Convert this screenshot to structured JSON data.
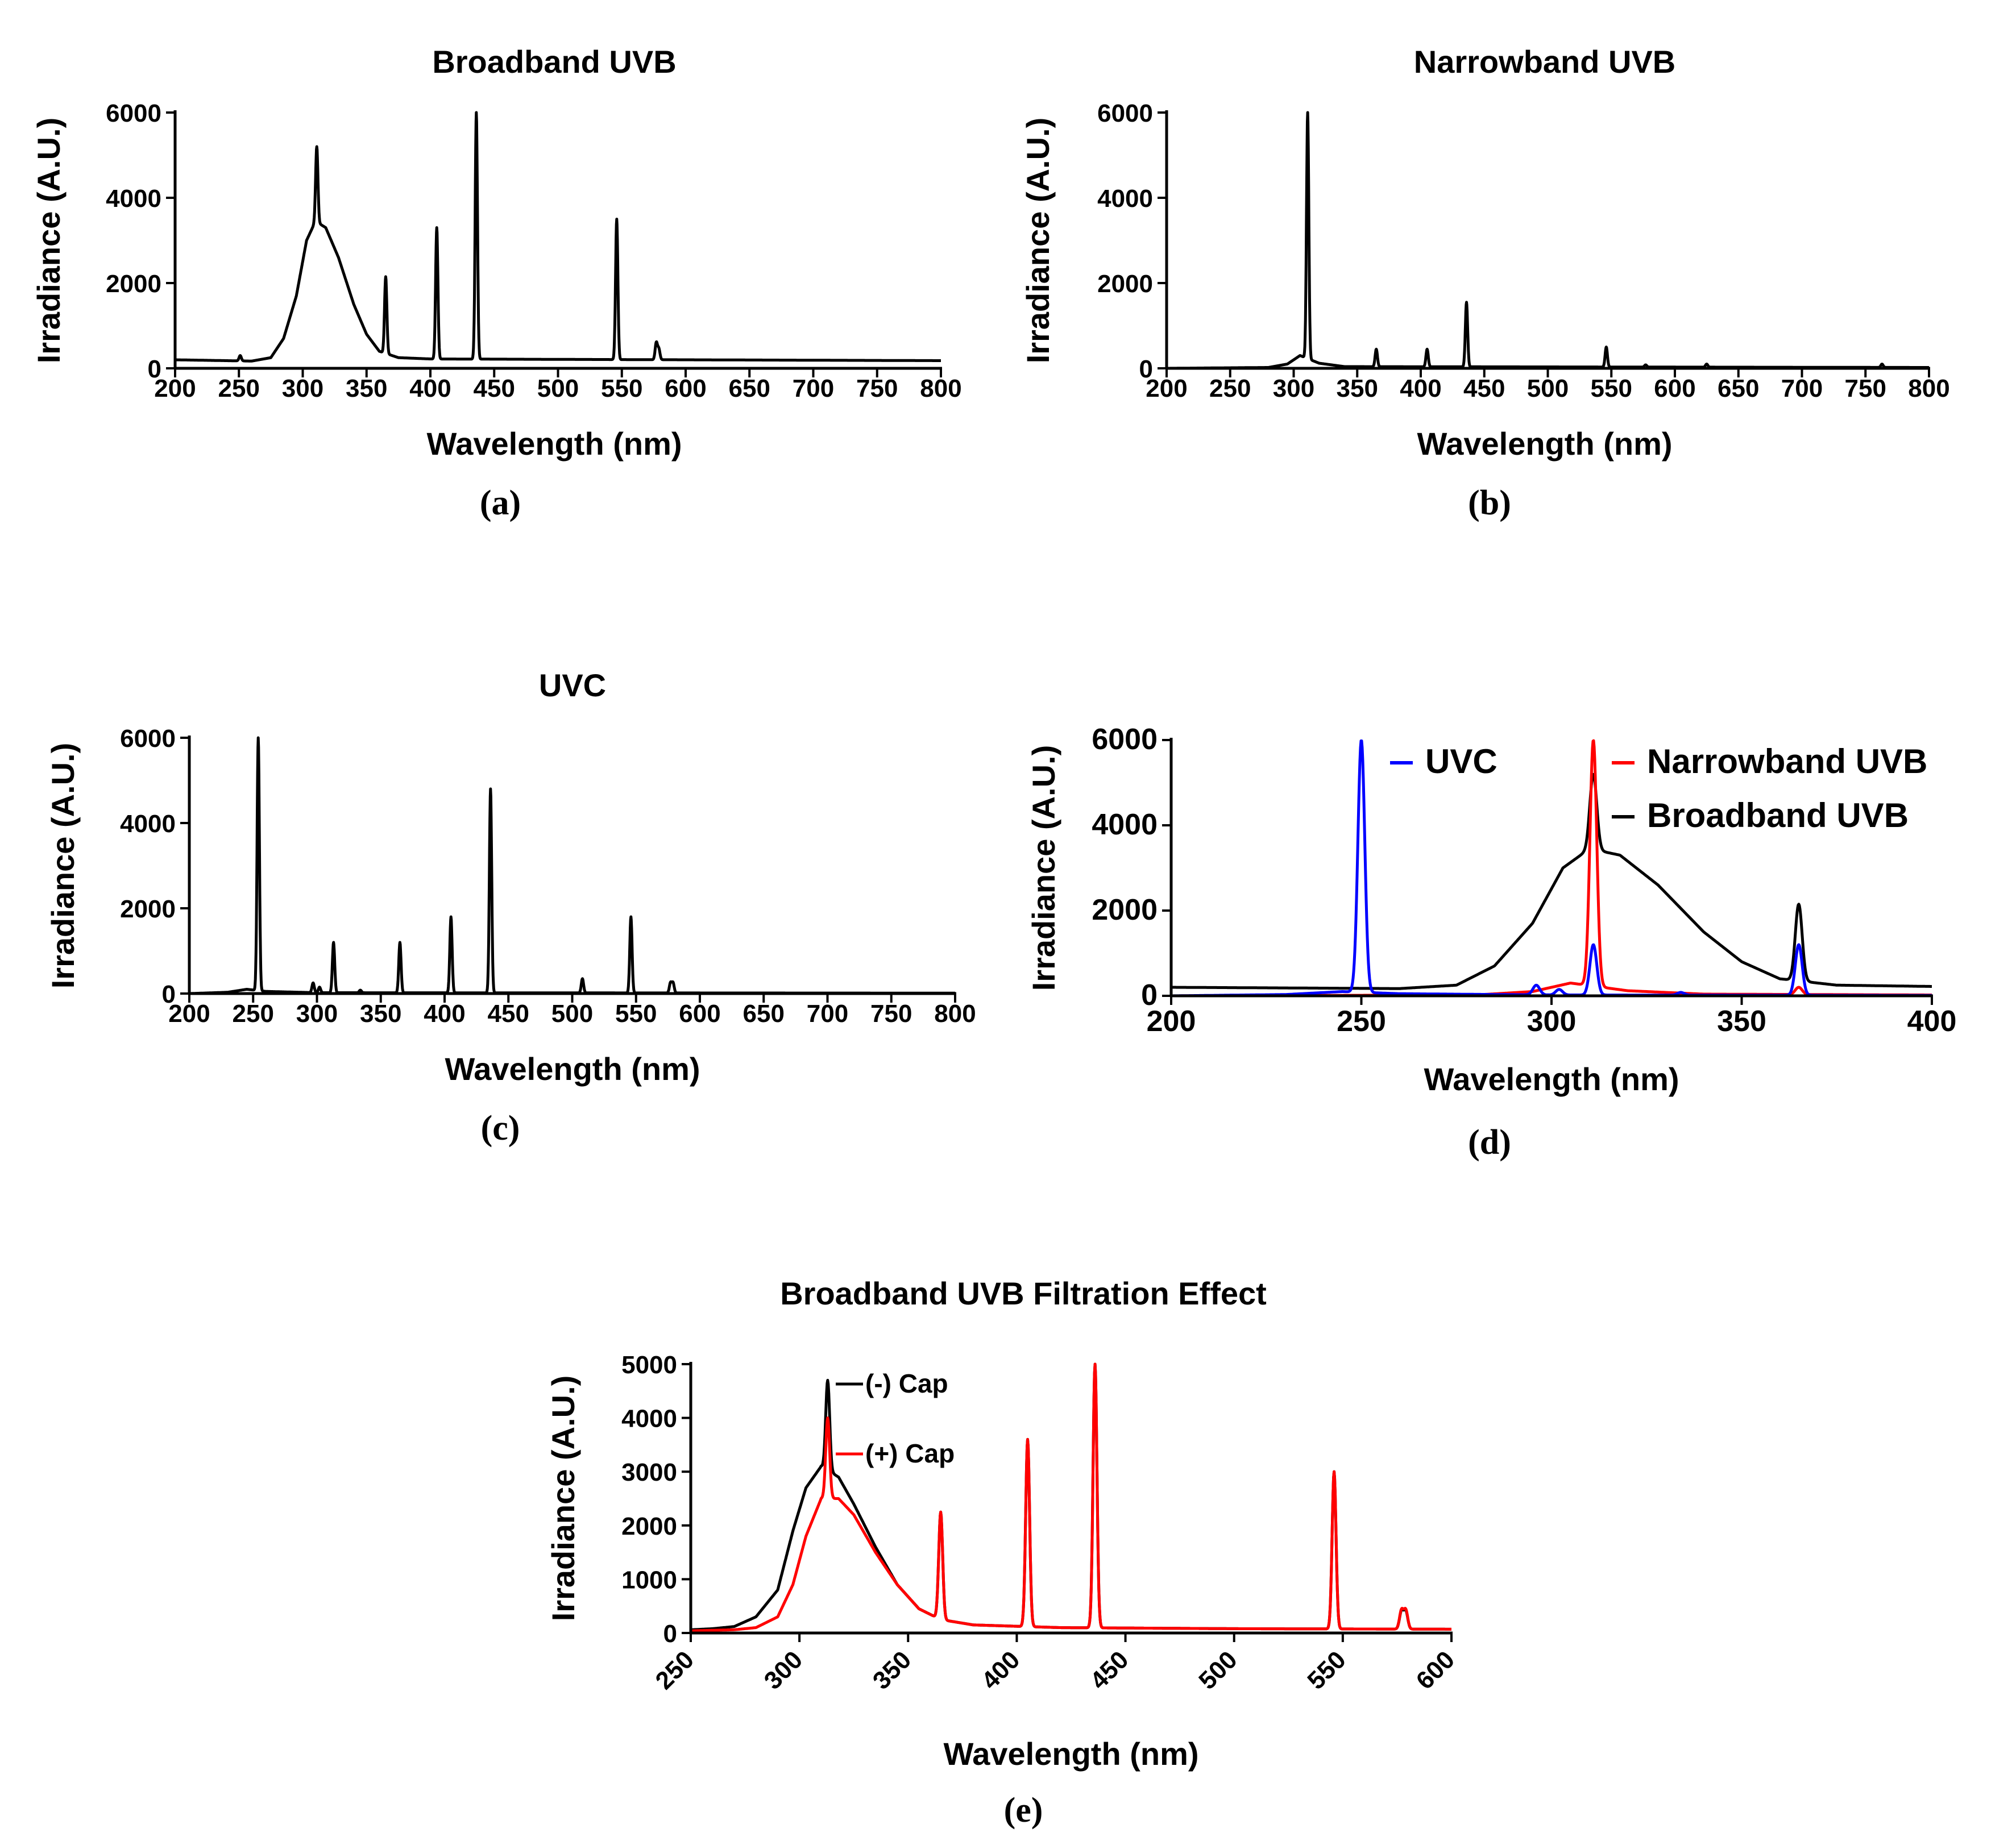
{
  "figure": {
    "colors": {
      "black": "#000000",
      "red": "#ff0000",
      "blue": "#0000ff"
    },
    "panels": {
      "a": {
        "caption": "(a)"
      },
      "b": {
        "caption": "(b)"
      },
      "c": {
        "caption": "(c)"
      },
      "d": {
        "caption": "(d)"
      },
      "e": {
        "caption": "(e)"
      }
    }
  },
  "chart_data": [
    {
      "id": "a",
      "type": "line",
      "title": "Broadband UVB",
      "xlabel": "Wavelength (nm)",
      "ylabel": "Irradiance (A.U.)",
      "xlim": [
        200,
        800
      ],
      "ylim": [
        0,
        6000
      ],
      "xticks": [
        200,
        250,
        300,
        350,
        400,
        450,
        500,
        550,
        600,
        650,
        700,
        750,
        800
      ],
      "yticks": [
        0,
        2000,
        4000,
        6000
      ],
      "series": [
        {
          "name": "Broadband UVB",
          "color": "#000000",
          "background": [
            [
              200,
              200
            ],
            [
              240,
              180
            ],
            [
              260,
              170
            ],
            [
              275,
              250
            ],
            [
              285,
              700
            ],
            [
              295,
              1700
            ],
            [
              303,
              3000
            ],
            [
              310,
              3450
            ],
            [
              318,
              3300
            ],
            [
              328,
              2600
            ],
            [
              340,
              1500
            ],
            [
              350,
              800
            ],
            [
              360,
              400
            ],
            [
              375,
              250
            ],
            [
              400,
              220
            ],
            [
              500,
              210
            ],
            [
              600,
              200
            ],
            [
              700,
              190
            ],
            [
              800,
              180
            ]
          ],
          "peaks": [
            [
              251,
              300
            ],
            [
              311,
              5200
            ],
            [
              365,
              2150
            ],
            [
              405,
              3300
            ],
            [
              436,
              6000
            ],
            [
              546,
              3500
            ],
            [
              577,
              600
            ],
            [
              579,
              450
            ]
          ]
        }
      ]
    },
    {
      "id": "b",
      "type": "line",
      "title": "Narrowband UVB",
      "xlabel": "Wavelength (nm)",
      "ylabel": "Irradiance (A.U.)",
      "xlim": [
        200,
        800
      ],
      "ylim": [
        0,
        6000
      ],
      "xticks": [
        200,
        250,
        300,
        350,
        400,
        450,
        500,
        550,
        600,
        650,
        700,
        750,
        800
      ],
      "yticks": [
        0,
        2000,
        4000,
        6000
      ],
      "series": [
        {
          "name": "Narrowband UVB",
          "color": "#000000",
          "background": [
            [
              200,
              0
            ],
            [
              280,
              20
            ],
            [
              295,
              100
            ],
            [
              305,
              300
            ],
            [
              320,
              120
            ],
            [
              340,
              40
            ],
            [
              800,
              20
            ]
          ],
          "peaks": [
            [
              311,
              6000
            ],
            [
              365,
              450
            ],
            [
              405,
              450
            ],
            [
              436,
              1550
            ],
            [
              546,
              500
            ],
            [
              577,
              80
            ],
            [
              625,
              100
            ],
            [
              763,
              100
            ]
          ]
        }
      ]
    },
    {
      "id": "c",
      "type": "line",
      "title": "UVC",
      "xlabel": "Wavelength (nm)",
      "ylabel": "Irradiance (A.U.)",
      "xlim": [
        200,
        800
      ],
      "ylim": [
        0,
        6000
      ],
      "xticks": [
        200,
        250,
        300,
        350,
        400,
        450,
        500,
        550,
        600,
        650,
        700,
        750,
        800
      ],
      "yticks": [
        0,
        2000,
        4000,
        6000
      ],
      "series": [
        {
          "name": "UVC",
          "color": "#000000",
          "background": [
            [
              200,
              0
            ],
            [
              230,
              30
            ],
            [
              245,
              100
            ],
            [
              260,
              50
            ],
            [
              300,
              20
            ],
            [
              800,
              10
            ]
          ],
          "peaks": [
            [
              254,
              6000
            ],
            [
              297,
              250
            ],
            [
              302,
              150
            ],
            [
              313,
              1200
            ],
            [
              334,
              80
            ],
            [
              365,
              1200
            ],
            [
              405,
              1800
            ],
            [
              436,
              4800
            ],
            [
              508,
              350
            ],
            [
              546,
              1800
            ],
            [
              577,
              250
            ],
            [
              579,
              250
            ]
          ]
        }
      ]
    },
    {
      "id": "d",
      "type": "line",
      "title": "",
      "xlabel": "Wavelength (nm)",
      "ylabel": "Irradiance (A.U.)",
      "xlim": [
        200,
        400
      ],
      "ylim": [
        0,
        6000
      ],
      "xticks": [
        200,
        250,
        300,
        350,
        400
      ],
      "yticks": [
        0,
        2000,
        4000,
        6000
      ],
      "legend_position": "top-right",
      "series": [
        {
          "name": "Broadband UVB",
          "color": "#000000",
          "background": [
            [
              200,
              200
            ],
            [
              240,
              180
            ],
            [
              260,
              170
            ],
            [
              275,
              250
            ],
            [
              285,
              700
            ],
            [
              295,
              1700
            ],
            [
              303,
              3000
            ],
            [
              310,
              3450
            ],
            [
              318,
              3300
            ],
            [
              328,
              2600
            ],
            [
              340,
              1500
            ],
            [
              350,
              800
            ],
            [
              360,
              400
            ],
            [
              375,
              250
            ],
            [
              400,
              220
            ]
          ],
          "peaks": [
            [
              311,
              5200
            ],
            [
              365,
              2150
            ]
          ]
        },
        {
          "name": "Narrowband UVB",
          "color": "#ff0000",
          "background": [
            [
              200,
              0
            ],
            [
              280,
              20
            ],
            [
              295,
              100
            ],
            [
              305,
              300
            ],
            [
              320,
              120
            ],
            [
              340,
              40
            ],
            [
              400,
              20
            ]
          ],
          "peaks": [
            [
              305,
              300
            ],
            [
              311,
              6000
            ],
            [
              365,
              200
            ]
          ]
        },
        {
          "name": "UVC",
          "color": "#0000ff",
          "background": [
            [
              200,
              0
            ],
            [
              230,
              30
            ],
            [
              245,
              100
            ],
            [
              260,
              50
            ],
            [
              300,
              20
            ],
            [
              400,
              10
            ]
          ],
          "peaks": [
            [
              250,
              6000
            ],
            [
              296,
              250
            ],
            [
              302,
              150
            ],
            [
              311,
              1200
            ],
            [
              334,
              80
            ],
            [
              365,
              1200
            ]
          ]
        }
      ]
    },
    {
      "id": "e",
      "type": "line",
      "title": "Broadband UVB Filtration Effect",
      "xlabel": "Wavelength (nm)",
      "ylabel": "Irradiance (A.U.)",
      "xlim": [
        250,
        600
      ],
      "ylim": [
        0,
        5000
      ],
      "xticks": [
        250,
        300,
        350,
        400,
        450,
        500,
        550,
        600
      ],
      "yticks": [
        0,
        1000,
        2000,
        3000,
        4000,
        5000
      ],
      "legend_position": "top-left",
      "series": [
        {
          "name": "(-) Cap",
          "color": "#000000",
          "background": [
            [
              250,
              60
            ],
            [
              260,
              80
            ],
            [
              270,
              120
            ],
            [
              280,
              300
            ],
            [
              290,
              800
            ],
            [
              297,
              1900
            ],
            [
              303,
              2700
            ],
            [
              310,
              3100
            ],
            [
              318,
              2900
            ],
            [
              325,
              2400
            ],
            [
              335,
              1600
            ],
            [
              345,
              900
            ],
            [
              355,
              450
            ],
            [
              365,
              250
            ],
            [
              380,
              150
            ],
            [
              420,
              100
            ],
            [
              500,
              80
            ],
            [
              600,
              70
            ]
          ],
          "peaks": [
            [
              313,
              4700
            ],
            [
              365,
              2250
            ],
            [
              405,
              3600
            ],
            [
              436,
              5000
            ],
            [
              546,
              3000
            ],
            [
              577,
              400
            ],
            [
              579,
              400
            ]
          ]
        },
        {
          "name": "(+) Cap",
          "color": "#ff0000",
          "background": [
            [
              250,
              40
            ],
            [
              270,
              60
            ],
            [
              280,
              100
            ],
            [
              290,
              300
            ],
            [
              297,
              900
            ],
            [
              303,
              1800
            ],
            [
              310,
              2500
            ],
            [
              318,
              2500
            ],
            [
              325,
              2200
            ],
            [
              335,
              1500
            ],
            [
              345,
              900
            ],
            [
              355,
              450
            ],
            [
              365,
              250
            ],
            [
              380,
              150
            ],
            [
              420,
              100
            ],
            [
              500,
              80
            ],
            [
              600,
              70
            ]
          ],
          "peaks": [
            [
              313,
              4000
            ],
            [
              365,
              2250
            ],
            [
              405,
              3600
            ],
            [
              436,
              5000
            ],
            [
              546,
              3000
            ],
            [
              577,
              420
            ],
            [
              579,
              420
            ]
          ]
        }
      ]
    }
  ]
}
